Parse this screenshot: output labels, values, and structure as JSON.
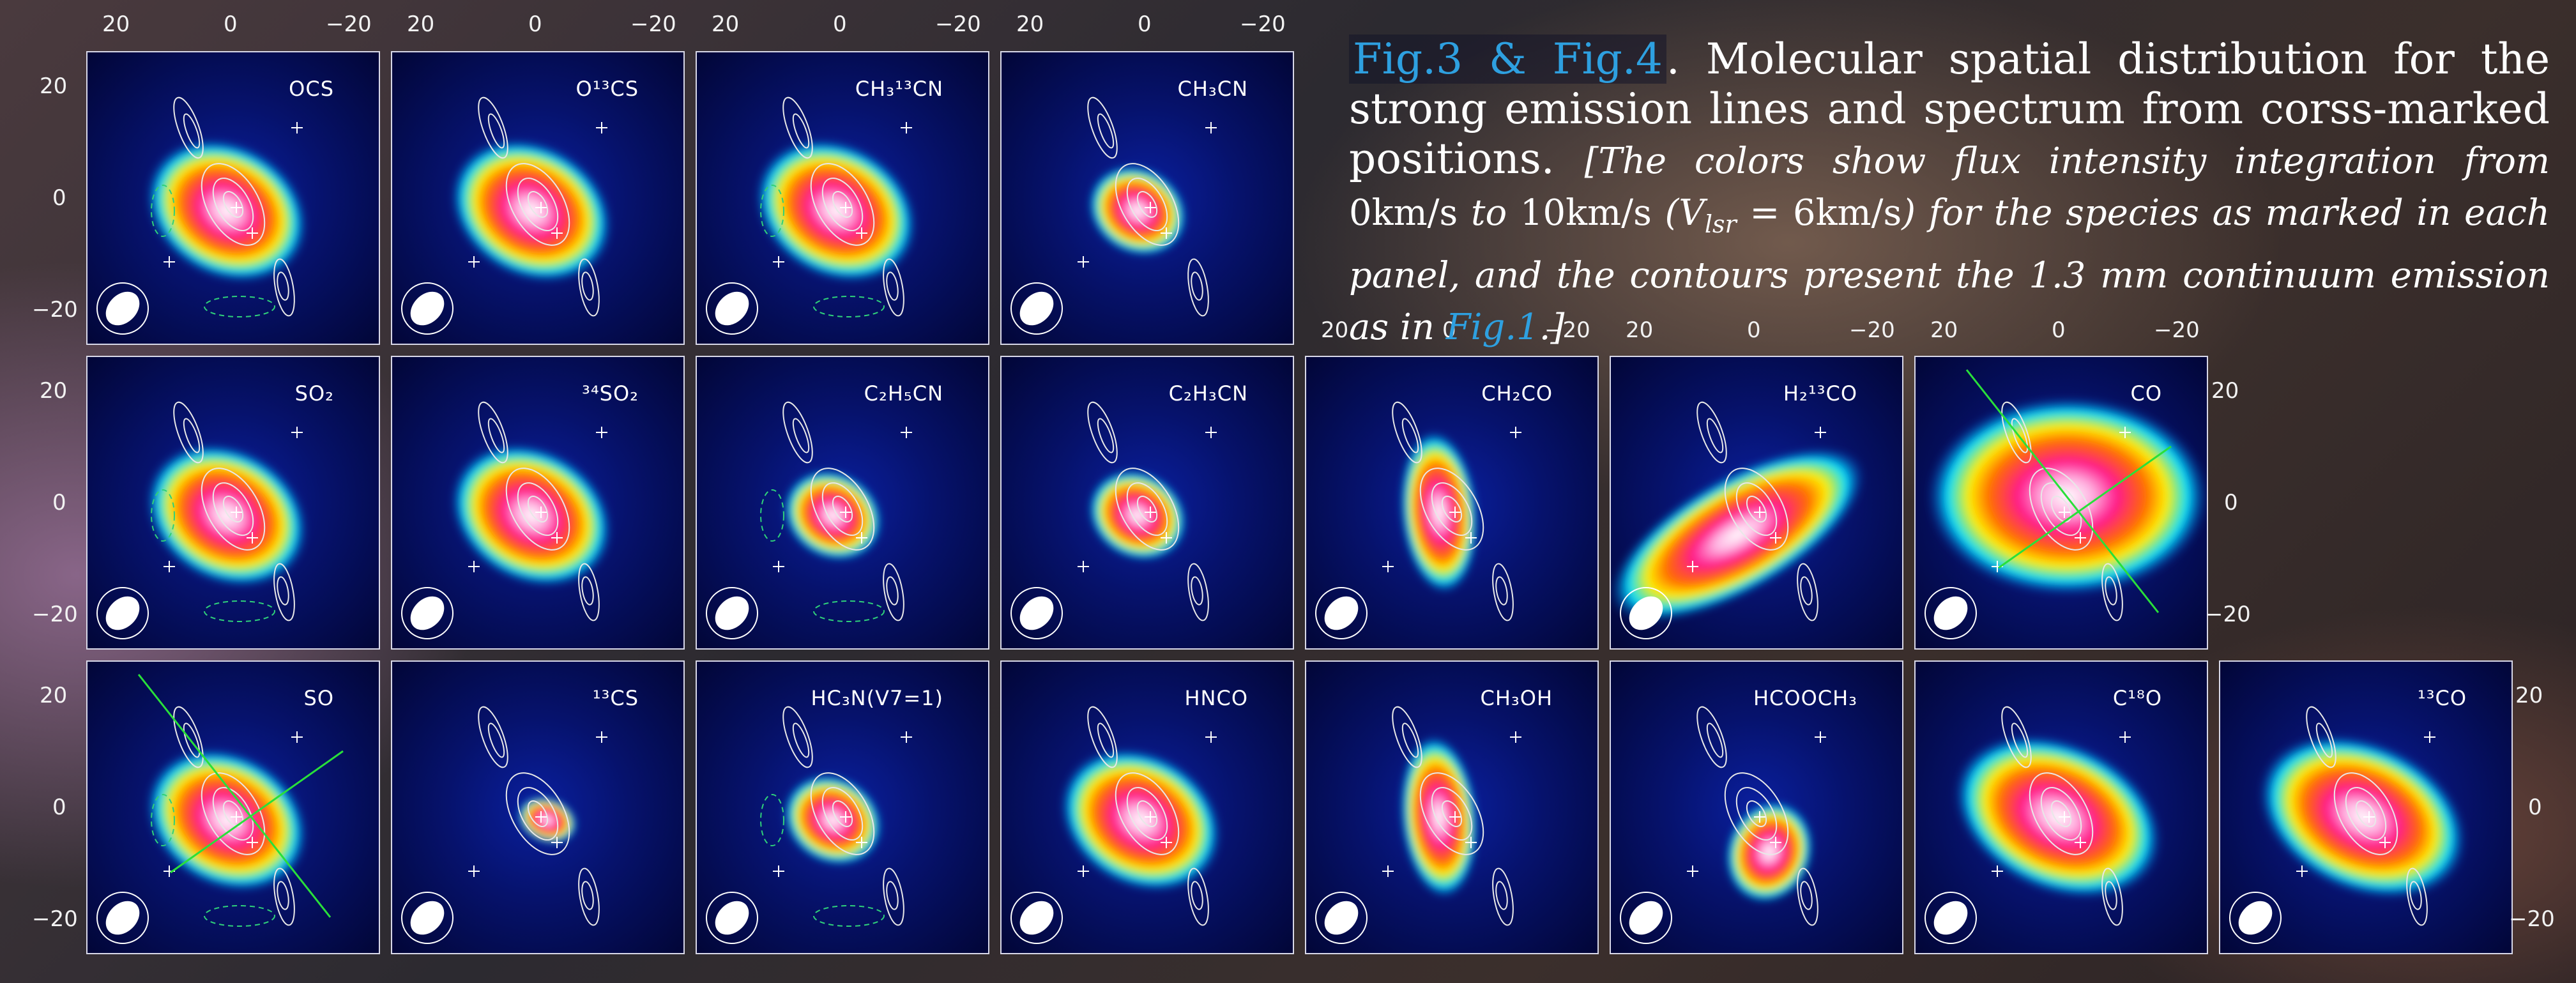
{
  "caption": {
    "fig_ref": "Fig.3 & Fig.4",
    "lead": ".   Molecular spatial distribution for the strong emission lines and spectrum from corss-marked positions.",
    "italic_a": "[The colors show flux intensity integration from ",
    "v1": "0km/s",
    "italic_b": " to ",
    "v2": "10km/s",
    "italic_c": " (V",
    "vsub": "lsr",
    "italic_d": " = ",
    "v3": "6km/s",
    "italic_e": ") for the species as marked in each panel, and the contours present the 1.3 mm continuum emission as in ",
    "fig_ref2": "Fig.1",
    "italic_f": ".]"
  },
  "axis_ticks": {
    "x": [
      "20",
      "0",
      "−20"
    ],
    "y": [
      "20",
      "0",
      "−20"
    ]
  },
  "colors": {
    "background_dark": "#020638",
    "emission_peak": "#ffffff",
    "emission_high": "#ff1a8c",
    "emission_mid": "#ffee00",
    "emission_low": "#00e0ff",
    "contour": "#e8e8e8",
    "neg_contour": "#2fd07a",
    "caption_link": "#2ea0e0"
  },
  "panels": [
    {
      "id": "ocs",
      "label": "OCS",
      "row": 0,
      "col": 0,
      "shape": "compact"
    },
    {
      "id": "o13cs",
      "label": "O¹³CS",
      "row": 0,
      "col": 1,
      "shape": "compact"
    },
    {
      "id": "ch313cn",
      "label": "CH₃¹³CN",
      "row": 0,
      "col": 2,
      "shape": "compact"
    },
    {
      "id": "ch3cn",
      "label": "CH₃CN",
      "row": 0,
      "col": 3,
      "shape": "small"
    },
    {
      "id": "so2",
      "label": "SO₂",
      "row": 1,
      "col": 0,
      "shape": "compact"
    },
    {
      "id": "34so2",
      "label": "³⁴SO₂",
      "row": 1,
      "col": 1,
      "shape": "compact"
    },
    {
      "id": "c2h5cn",
      "label": "C₂H₅CN",
      "row": 1,
      "col": 2,
      "shape": "small"
    },
    {
      "id": "c2h3cn",
      "label": "C₂H₃CN",
      "row": 1,
      "col": 3,
      "shape": "small"
    },
    {
      "id": "ch2co",
      "label": "CH₂CO",
      "row": 1,
      "col": 4,
      "shape": "vertical"
    },
    {
      "id": "h213co",
      "label": "H₂¹³CO",
      "row": 1,
      "col": 5,
      "shape": "extended"
    },
    {
      "id": "co",
      "label": "CO",
      "row": 1,
      "col": 6,
      "shape": "large"
    },
    {
      "id": "so",
      "label": "SO",
      "row": 2,
      "col": 0,
      "shape": "compact"
    },
    {
      "id": "13cs",
      "label": "¹³CS",
      "row": 2,
      "col": 1,
      "shape": "tiny"
    },
    {
      "id": "hc3n",
      "label": "HC₃N(V7=1)",
      "row": 2,
      "col": 2,
      "shape": "small"
    },
    {
      "id": "hnco",
      "label": "HNCO",
      "row": 2,
      "col": 3,
      "shape": "compact"
    },
    {
      "id": "ch3oh",
      "label": "CH₃OH",
      "row": 2,
      "col": 4,
      "shape": "vertical"
    },
    {
      "id": "hcooch3",
      "label": "HCOOCH₃",
      "row": 2,
      "col": 5,
      "shape": "small-low"
    },
    {
      "id": "c18o",
      "label": "C¹⁸O",
      "row": 2,
      "col": 6,
      "shape": "compact-big"
    },
    {
      "id": "13co",
      "label": "¹³CO",
      "row": 2,
      "col": 7,
      "shape": "compact-big"
    }
  ]
}
